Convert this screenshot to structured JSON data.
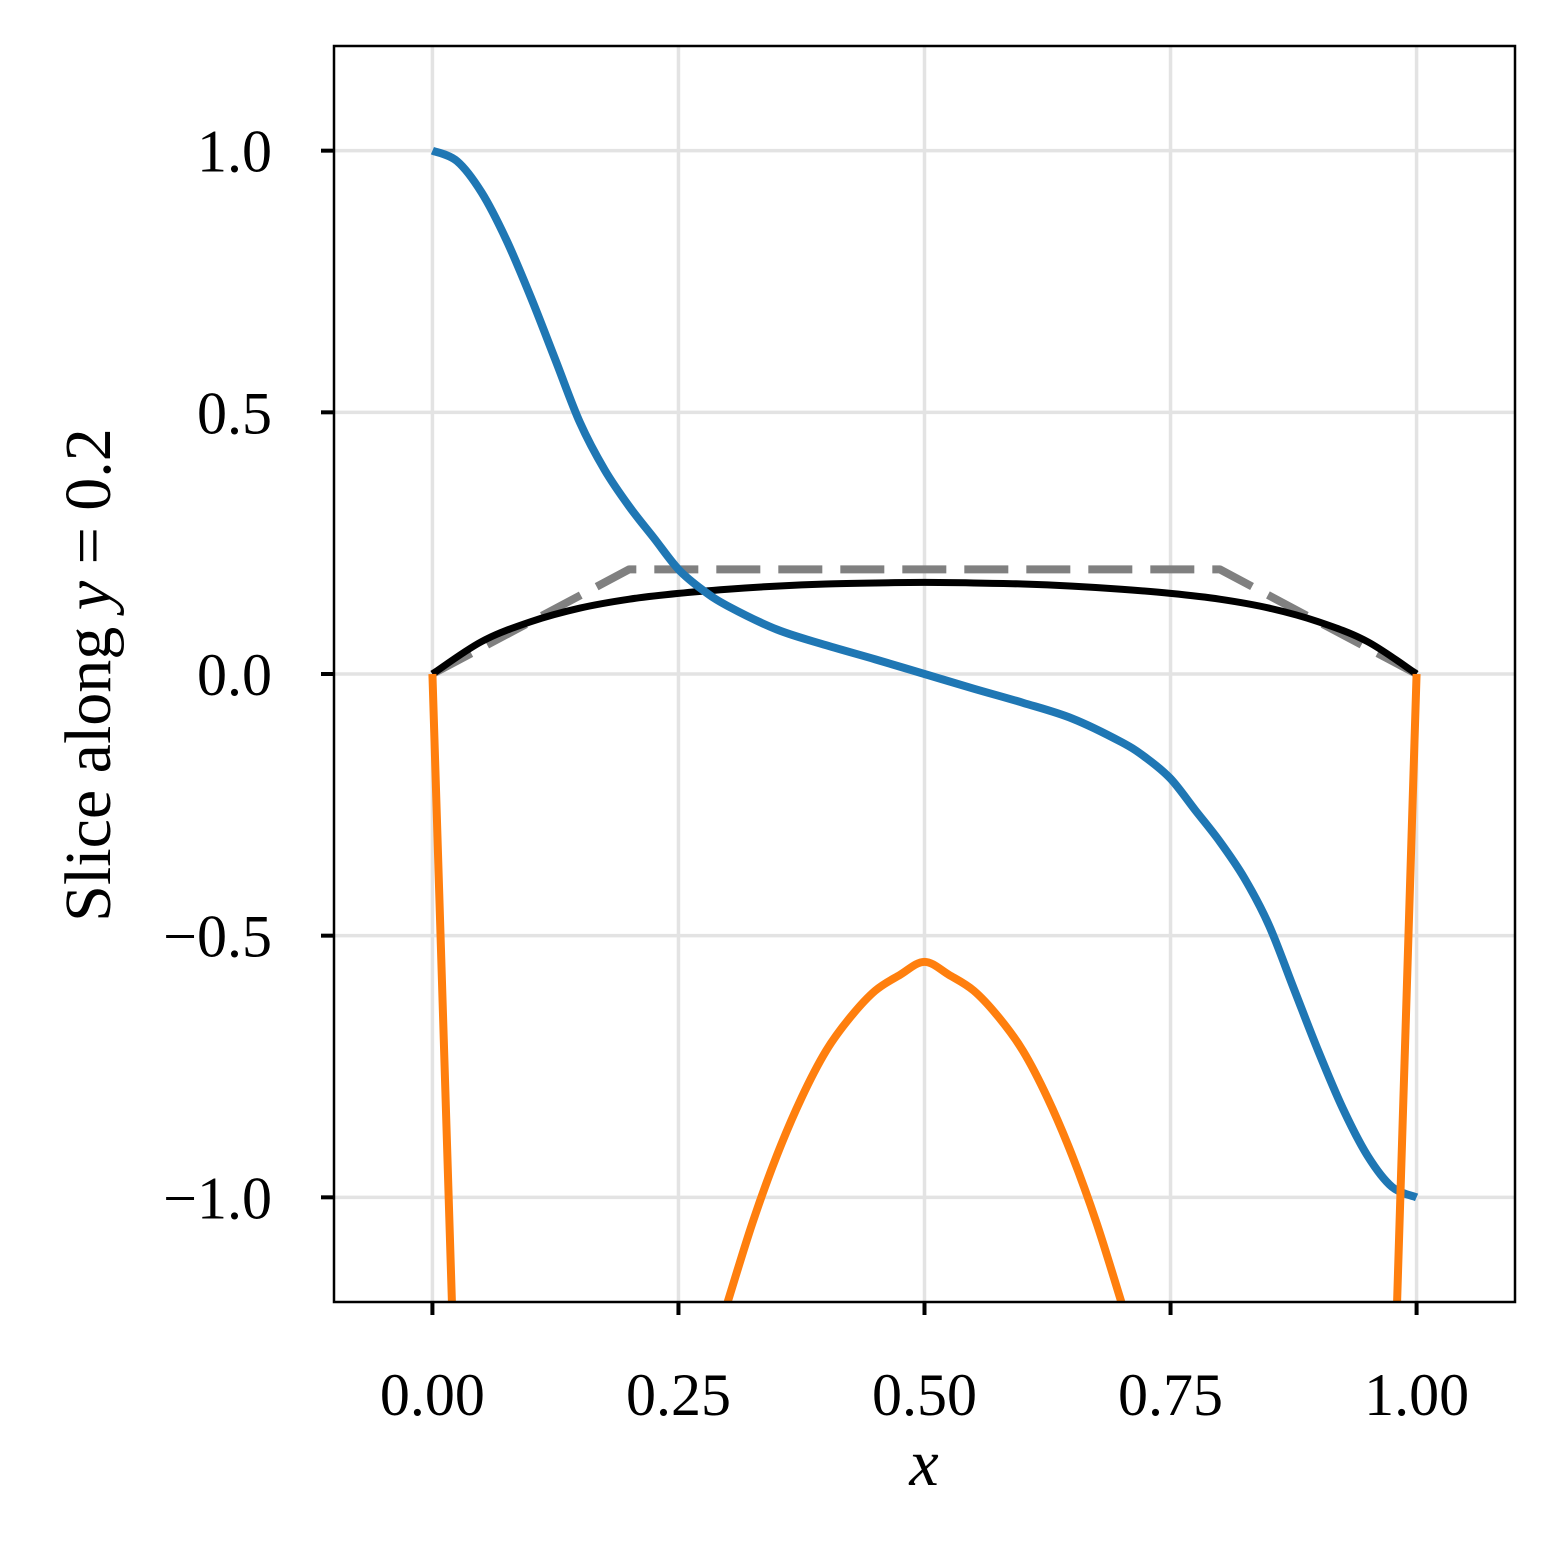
{
  "chart_data": {
    "type": "line",
    "xlabel": "x",
    "ylabel": {
      "prefix": "Slice along ",
      "var": "y",
      "suffix": " = 0.2"
    },
    "xlim": [
      -0.1,
      1.1
    ],
    "ylim": [
      -1.2,
      1.2
    ],
    "grid": true,
    "legend": "none",
    "x_ticks": [
      {
        "value": 0.0,
        "label": "0.00"
      },
      {
        "value": 0.25,
        "label": "0.25"
      },
      {
        "value": 0.5,
        "label": "0.50"
      },
      {
        "value": 0.75,
        "label": "0.75"
      },
      {
        "value": 1.0,
        "label": "1.00"
      }
    ],
    "y_ticks": [
      {
        "value": 1.0,
        "label": "1.0"
      },
      {
        "value": 0.5,
        "label": "0.5"
      },
      {
        "value": 0.0,
        "label": "0.0"
      },
      {
        "value": -0.5,
        "label": "−0.5"
      },
      {
        "value": -1.0,
        "label": "−1.0"
      }
    ],
    "series": [
      {
        "color": "#808080",
        "style": "dashed",
        "x": [
          0.0,
          0.2,
          0.8,
          1.0
        ],
        "y": [
          0.0,
          0.2,
          0.2,
          0.0
        ]
      },
      {
        "color": "#000000",
        "style": "solid",
        "x": [
          0.0,
          0.05,
          0.1,
          0.15,
          0.2,
          0.25,
          0.3,
          0.35,
          0.4,
          0.45,
          0.5,
          0.55,
          0.6,
          0.65,
          0.7,
          0.75,
          0.8,
          0.85,
          0.9,
          0.95,
          1.0
        ],
        "y": [
          0.0,
          0.062,
          0.1,
          0.126,
          0.143,
          0.154,
          0.162,
          0.168,
          0.172,
          0.174,
          0.175,
          0.174,
          0.172,
          0.168,
          0.162,
          0.154,
          0.143,
          0.126,
          0.1,
          0.062,
          0.0
        ]
      },
      {
        "color": "#1f77b4",
        "style": "solid",
        "x": [
          0.0,
          0.025,
          0.05,
          0.075,
          0.1,
          0.125,
          0.15,
          0.175,
          0.2,
          0.225,
          0.25,
          0.275,
          0.3,
          0.35,
          0.4,
          0.45,
          0.5,
          0.55,
          0.6,
          0.65,
          0.7,
          0.725,
          0.75,
          0.775,
          0.8,
          0.825,
          0.85,
          0.875,
          0.9,
          0.925,
          0.95,
          0.975,
          1.0
        ],
        "y": [
          1.0,
          0.98,
          0.92,
          0.83,
          0.72,
          0.6,
          0.48,
          0.39,
          0.32,
          0.26,
          0.2,
          0.16,
          0.13,
          0.085,
          0.055,
          0.028,
          0.0,
          -0.028,
          -0.055,
          -0.085,
          -0.13,
          -0.16,
          -0.2,
          -0.26,
          -0.32,
          -0.39,
          -0.48,
          -0.6,
          -0.72,
          -0.83,
          -0.92,
          -0.98,
          -1.0
        ]
      },
      {
        "color": "#ff7f0e",
        "style": "solid",
        "x": [
          0.0,
          0.02,
          0.3,
          0.325,
          0.35,
          0.375,
          0.4,
          0.425,
          0.45,
          0.475,
          0.5,
          0.525,
          0.55,
          0.575,
          0.6,
          0.625,
          0.65,
          0.675,
          0.7,
          0.98,
          1.0
        ],
        "y": [
          0.0,
          -1.2,
          -1.2,
          -1.05,
          -0.92,
          -0.81,
          -0.72,
          -0.655,
          -0.605,
          -0.575,
          -0.55,
          -0.575,
          -0.605,
          -0.655,
          -0.72,
          -0.81,
          -0.92,
          -1.05,
          -1.2,
          -1.2,
          0.0
        ]
      }
    ]
  }
}
